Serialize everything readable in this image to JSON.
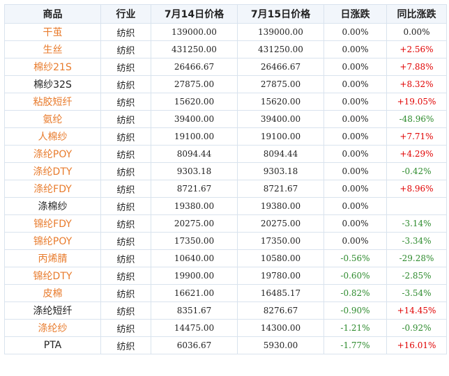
{
  "table": {
    "headers": [
      "商品",
      "行业",
      "7月14日价格",
      "7月15日价格",
      "日涨跌",
      "同比涨跌"
    ],
    "rows": [
      {
        "name": "干茧",
        "name_color": "orange",
        "industry": "纺织",
        "price_0714": "139000.00",
        "price_0715": "139000.00",
        "daily": "0.00%",
        "daily_dir": "flat",
        "yoy": "0.00%",
        "yoy_dir": "flat"
      },
      {
        "name": "生丝",
        "name_color": "orange",
        "industry": "纺织",
        "price_0714": "431250.00",
        "price_0715": "431250.00",
        "daily": "0.00%",
        "daily_dir": "flat",
        "yoy": "+2.56%",
        "yoy_dir": "up"
      },
      {
        "name": "棉纱21S",
        "name_color": "orange",
        "industry": "纺织",
        "price_0714": "26466.67",
        "price_0715": "26466.67",
        "daily": "0.00%",
        "daily_dir": "flat",
        "yoy": "+7.88%",
        "yoy_dir": "up"
      },
      {
        "name": "棉纱32S",
        "name_color": "black",
        "industry": "纺织",
        "price_0714": "27875.00",
        "price_0715": "27875.00",
        "daily": "0.00%",
        "daily_dir": "flat",
        "yoy": "+8.32%",
        "yoy_dir": "up"
      },
      {
        "name": "粘胶短纤",
        "name_color": "orange",
        "industry": "纺织",
        "price_0714": "15620.00",
        "price_0715": "15620.00",
        "daily": "0.00%",
        "daily_dir": "flat",
        "yoy": "+19.05%",
        "yoy_dir": "up"
      },
      {
        "name": "氨纶",
        "name_color": "orange",
        "industry": "纺织",
        "price_0714": "39400.00",
        "price_0715": "39400.00",
        "daily": "0.00%",
        "daily_dir": "flat",
        "yoy": "-48.96%",
        "yoy_dir": "down"
      },
      {
        "name": "人棉纱",
        "name_color": "orange",
        "industry": "纺织",
        "price_0714": "19100.00",
        "price_0715": "19100.00",
        "daily": "0.00%",
        "daily_dir": "flat",
        "yoy": "+7.71%",
        "yoy_dir": "up"
      },
      {
        "name": "涤纶POY",
        "name_color": "orange",
        "industry": "纺织",
        "price_0714": "8094.44",
        "price_0715": "8094.44",
        "daily": "0.00%",
        "daily_dir": "flat",
        "yoy": "+4.29%",
        "yoy_dir": "up"
      },
      {
        "name": "涤纶DTY",
        "name_color": "orange",
        "industry": "纺织",
        "price_0714": "9303.18",
        "price_0715": "9303.18",
        "daily": "0.00%",
        "daily_dir": "flat",
        "yoy": "-0.42%",
        "yoy_dir": "down"
      },
      {
        "name": "涤纶FDY",
        "name_color": "orange",
        "industry": "纺织",
        "price_0714": "8721.67",
        "price_0715": "8721.67",
        "daily": "0.00%",
        "daily_dir": "flat",
        "yoy": "+8.96%",
        "yoy_dir": "up"
      },
      {
        "name": "涤棉纱",
        "name_color": "black",
        "industry": "纺织",
        "price_0714": "19380.00",
        "price_0715": "19380.00",
        "daily": "0.00%",
        "daily_dir": "flat",
        "yoy": "",
        "yoy_dir": "flat"
      },
      {
        "name": "锦纶FDY",
        "name_color": "orange",
        "industry": "纺织",
        "price_0714": "20275.00",
        "price_0715": "20275.00",
        "daily": "0.00%",
        "daily_dir": "flat",
        "yoy": "-3.14%",
        "yoy_dir": "down"
      },
      {
        "name": "锦纶POY",
        "name_color": "orange",
        "industry": "纺织",
        "price_0714": "17350.00",
        "price_0715": "17350.00",
        "daily": "0.00%",
        "daily_dir": "flat",
        "yoy": "-3.34%",
        "yoy_dir": "down"
      },
      {
        "name": "丙烯腈",
        "name_color": "orange",
        "industry": "纺织",
        "price_0714": "10640.00",
        "price_0715": "10580.00",
        "daily": "-0.56%",
        "daily_dir": "down",
        "yoy": "-29.28%",
        "yoy_dir": "down"
      },
      {
        "name": "锦纶DTY",
        "name_color": "orange",
        "industry": "纺织",
        "price_0714": "19900.00",
        "price_0715": "19780.00",
        "daily": "-0.60%",
        "daily_dir": "down",
        "yoy": "-2.85%",
        "yoy_dir": "down"
      },
      {
        "name": "皮棉",
        "name_color": "orange",
        "industry": "纺织",
        "price_0714": "16621.00",
        "price_0715": "16485.17",
        "daily": "-0.82%",
        "daily_dir": "down",
        "yoy": "-3.54%",
        "yoy_dir": "down"
      },
      {
        "name": "涤纶短纤",
        "name_color": "black",
        "industry": "纺织",
        "price_0714": "8351.67",
        "price_0715": "8276.67",
        "daily": "-0.90%",
        "daily_dir": "down",
        "yoy": "+14.45%",
        "yoy_dir": "up"
      },
      {
        "name": "涤纶纱",
        "name_color": "orange",
        "industry": "纺织",
        "price_0714": "14475.00",
        "price_0715": "14300.00",
        "daily": "-1.21%",
        "daily_dir": "down",
        "yoy": "-0.92%",
        "yoy_dir": "down"
      },
      {
        "name": "PTA",
        "name_color": "black",
        "industry": "纺织",
        "price_0714": "6036.67",
        "price_0715": "5930.00",
        "daily": "-1.77%",
        "daily_dir": "down",
        "yoy": "+16.01%",
        "yoy_dir": "up"
      }
    ]
  }
}
